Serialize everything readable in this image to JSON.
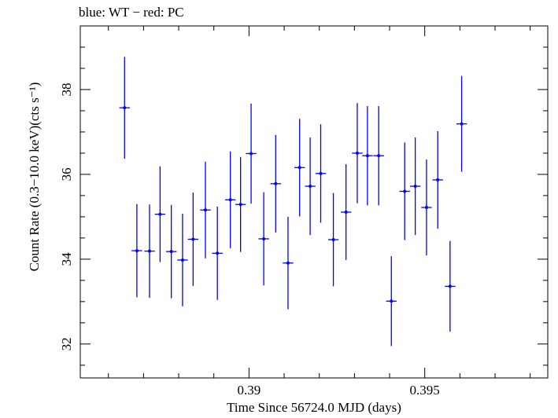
{
  "chart_data": {
    "type": "scatter",
    "title": "blue: WT − red: PC",
    "xlabel": "Time Since 56724.0 MJD (days)",
    "ylabel": "Count Rate (0.3−10.0 keV)(cts s⁻¹)",
    "xlim": [
      0.3852,
      0.3985
    ],
    "ylim": [
      31.2,
      39.5
    ],
    "xticks": [
      {
        "value": 0.39,
        "label": "0.39"
      },
      {
        "value": 0.395,
        "label": "0.395"
      }
    ],
    "yticks": [
      {
        "value": 32,
        "label": "32"
      },
      {
        "value": 34,
        "label": "34"
      },
      {
        "value": 36,
        "label": "36"
      },
      {
        "value": 38,
        "label": "38"
      }
    ],
    "grid": false,
    "series": [
      {
        "color": "#0000ff",
        "x_halfwidth": 0.00015,
        "points": [
          {
            "x": 0.38646,
            "y": 37.57,
            "err": 1.2
          },
          {
            "x": 0.38681,
            "y": 34.2,
            "err": 1.1
          },
          {
            "x": 0.38717,
            "y": 34.19,
            "err": 1.1
          },
          {
            "x": 0.38747,
            "y": 35.06,
            "err": 1.13
          },
          {
            "x": 0.38779,
            "y": 34.18,
            "err": 1.1
          },
          {
            "x": 0.38811,
            "y": 33.98,
            "err": 1.09
          },
          {
            "x": 0.38841,
            "y": 34.47,
            "err": 1.1
          },
          {
            "x": 0.38876,
            "y": 35.16,
            "err": 1.14
          },
          {
            "x": 0.3891,
            "y": 34.14,
            "err": 1.1
          },
          {
            "x": 0.38947,
            "y": 35.4,
            "err": 1.14
          },
          {
            "x": 0.38976,
            "y": 35.29,
            "err": 1.12
          },
          {
            "x": 0.39006,
            "y": 36.49,
            "err": 1.18
          },
          {
            "x": 0.39042,
            "y": 34.48,
            "err": 1.1
          },
          {
            "x": 0.39076,
            "y": 35.78,
            "err": 1.15
          },
          {
            "x": 0.39111,
            "y": 33.91,
            "err": 1.09
          },
          {
            "x": 0.39144,
            "y": 36.16,
            "err": 1.15
          },
          {
            "x": 0.39174,
            "y": 35.72,
            "err": 1.15
          },
          {
            "x": 0.39204,
            "y": 36.02,
            "err": 1.16
          },
          {
            "x": 0.3924,
            "y": 34.46,
            "err": 1.1
          },
          {
            "x": 0.39276,
            "y": 35.11,
            "err": 1.13
          },
          {
            "x": 0.39308,
            "y": 36.5,
            "err": 1.18
          },
          {
            "x": 0.39337,
            "y": 36.44,
            "err": 1.17
          },
          {
            "x": 0.39369,
            "y": 36.44,
            "err": 1.17
          },
          {
            "x": 0.39405,
            "y": 33.01,
            "err": 1.06
          },
          {
            "x": 0.39443,
            "y": 35.6,
            "err": 1.15
          },
          {
            "x": 0.39473,
            "y": 35.72,
            "err": 1.15
          },
          {
            "x": 0.39505,
            "y": 35.22,
            "err": 1.13
          },
          {
            "x": 0.39537,
            "y": 35.87,
            "err": 1.15
          },
          {
            "x": 0.39572,
            "y": 33.36,
            "err": 1.07
          },
          {
            "x": 0.39605,
            "y": 37.19,
            "err": 1.13
          }
        ]
      }
    ]
  }
}
